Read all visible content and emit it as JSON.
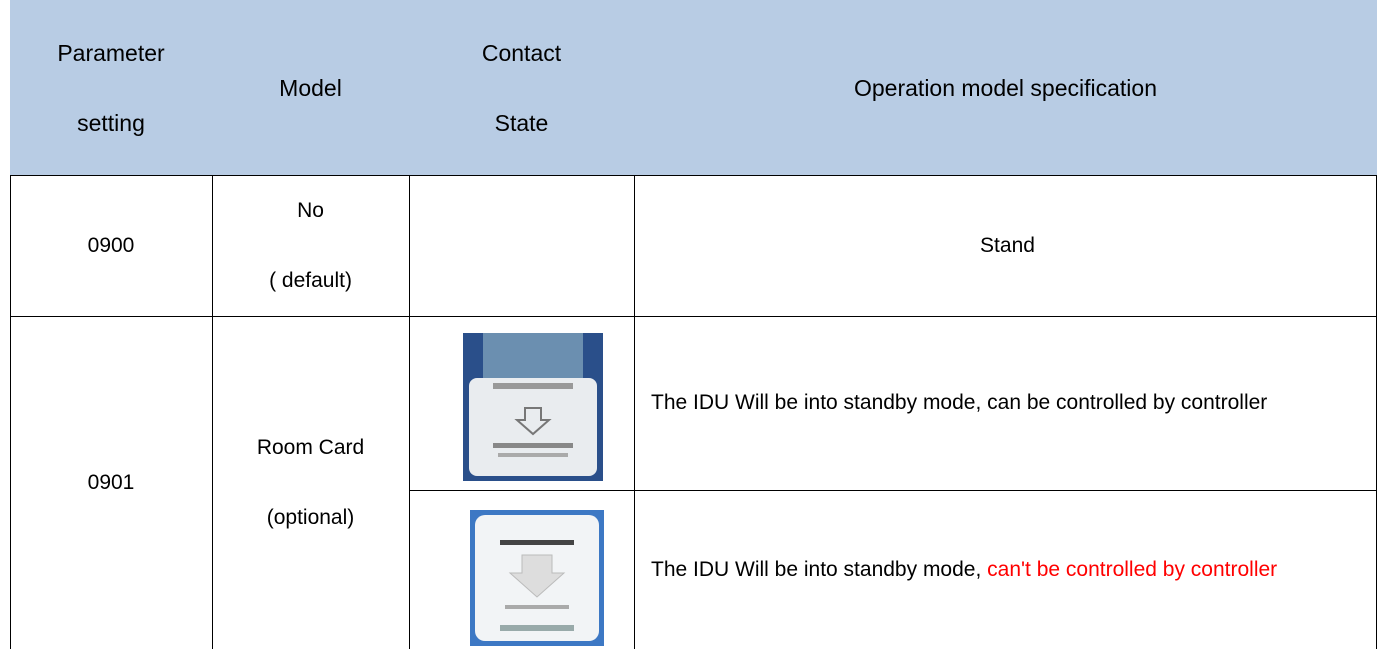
{
  "table": {
    "header": [
      [
        "Parameter",
        "setting"
      ],
      [
        "Model"
      ],
      [
        "Contact",
        "State"
      ],
      [
        "Operation model specification"
      ]
    ],
    "rows": [
      {
        "setting": "0900",
        "model": [
          "No",
          "( default)"
        ],
        "spec": [
          {
            "text": "Stand"
          }
        ]
      },
      {
        "setting": "0901",
        "model": [
          "Room Card",
          "(optional)"
        ],
        "spec": [
          {
            "text": "The IDU Will be into standby mode, can be controlled by controller"
          },
          {
            "text": "The IDU Will be into standby mode, ",
            "highlight": "can't be controlled by controller"
          }
        ]
      }
    ]
  }
}
